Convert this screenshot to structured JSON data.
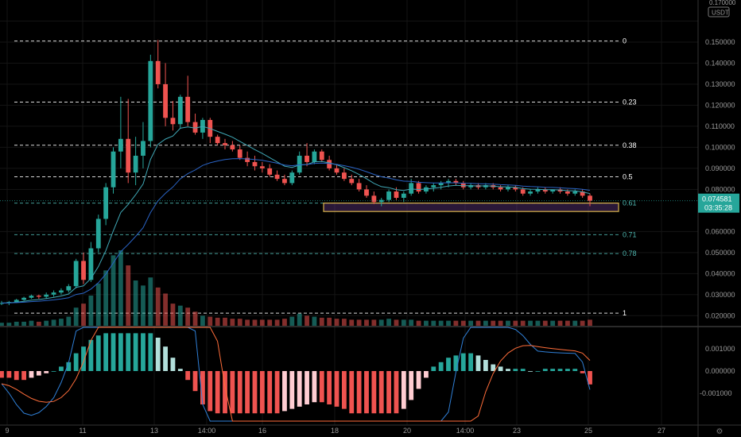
{
  "chart_data": {
    "type": "candlestick",
    "title": "",
    "currency_label": "USDT",
    "price_axis": {
      "ticks": [
        "0.150000",
        "0.140000",
        "0.130000",
        "0.120000",
        "0.110000",
        "0.100000",
        "0.090000",
        "0.080000",
        "0.060000",
        "0.050000",
        "0.040000",
        "0.030000",
        "0.020000"
      ],
      "top_partial": "0.170000",
      "range": [
        0.015,
        0.17
      ]
    },
    "time_axis": {
      "labels": [
        "9",
        "11",
        "13",
        "14:00",
        "16",
        "18",
        "20",
        "14:00",
        "23",
        "25",
        "27"
      ]
    },
    "last_price": {
      "value": "0.074581",
      "timer": "03:35:28"
    },
    "fibonacci": {
      "levels": [
        {
          "label": "0",
          "price": 0.1505,
          "color": "#ffffff"
        },
        {
          "label": "0.23",
          "price": 0.1215,
          "color": "#ffffff"
        },
        {
          "label": "0.38",
          "price": 0.101,
          "color": "#ffffff"
        },
        {
          "label": "0.5",
          "price": 0.086,
          "color": "#ffffff"
        },
        {
          "label": "0.61",
          "price": 0.0735,
          "color": "#4fb8b1"
        },
        {
          "label": "0.71",
          "price": 0.0585,
          "color": "#4fb8b1"
        },
        {
          "label": "0.78",
          "price": 0.0495,
          "color": "#4fb8b1"
        },
        {
          "label": "1",
          "price": 0.0212,
          "color": "#ffffff"
        }
      ]
    },
    "highlight_zone": {
      "from_price": 0.0695,
      "to_price": 0.0735
    },
    "candles": [
      [
        0.026,
        0.027,
        0.025,
        0.026
      ],
      [
        0.026,
        0.027,
        0.025,
        0.0265
      ],
      [
        0.0265,
        0.028,
        0.026,
        0.0275
      ],
      [
        0.0275,
        0.029,
        0.027,
        0.0285
      ],
      [
        0.0285,
        0.03,
        0.028,
        0.0295
      ],
      [
        0.0295,
        0.03,
        0.028,
        0.029
      ],
      [
        0.029,
        0.031,
        0.028,
        0.03
      ],
      [
        0.03,
        0.032,
        0.029,
        0.031
      ],
      [
        0.031,
        0.033,
        0.03,
        0.032
      ],
      [
        0.032,
        0.035,
        0.031,
        0.034
      ],
      [
        0.034,
        0.047,
        0.033,
        0.046
      ],
      [
        0.046,
        0.05,
        0.035,
        0.037
      ],
      [
        0.037,
        0.055,
        0.036,
        0.052
      ],
      [
        0.052,
        0.068,
        0.05,
        0.066
      ],
      [
        0.066,
        0.083,
        0.063,
        0.081
      ],
      [
        0.081,
        0.1,
        0.078,
        0.098
      ],
      [
        0.098,
        0.124,
        0.09,
        0.104
      ],
      [
        0.104,
        0.123,
        0.083,
        0.088
      ],
      [
        0.088,
        0.105,
        0.082,
        0.096
      ],
      [
        0.096,
        0.112,
        0.09,
        0.103
      ],
      [
        0.103,
        0.144,
        0.1,
        0.141
      ],
      [
        0.141,
        0.151,
        0.128,
        0.13
      ],
      [
        0.13,
        0.14,
        0.11,
        0.114
      ],
      [
        0.114,
        0.122,
        0.108,
        0.111
      ],
      [
        0.111,
        0.125,
        0.109,
        0.124
      ],
      [
        0.124,
        0.134,
        0.11,
        0.112
      ],
      [
        0.112,
        0.116,
        0.106,
        0.107
      ],
      [
        0.107,
        0.114,
        0.104,
        0.113
      ],
      [
        0.113,
        0.114,
        0.102,
        0.105
      ],
      [
        0.105,
        0.106,
        0.101,
        0.102
      ],
      [
        0.102,
        0.104,
        0.099,
        0.101
      ],
      [
        0.101,
        0.103,
        0.098,
        0.099
      ],
      [
        0.099,
        0.101,
        0.094,
        0.095
      ],
      [
        0.095,
        0.098,
        0.091,
        0.093
      ],
      [
        0.093,
        0.096,
        0.089,
        0.091
      ],
      [
        0.091,
        0.093,
        0.088,
        0.09
      ],
      [
        0.09,
        0.092,
        0.086,
        0.087
      ],
      [
        0.087,
        0.089,
        0.084,
        0.085
      ],
      [
        0.085,
        0.087,
        0.082,
        0.083
      ],
      [
        0.083,
        0.089,
        0.082,
        0.088
      ],
      [
        0.088,
        0.098,
        0.087,
        0.096
      ],
      [
        0.096,
        0.102,
        0.091,
        0.093
      ],
      [
        0.093,
        0.099,
        0.092,
        0.098
      ],
      [
        0.098,
        0.099,
        0.093,
        0.094
      ],
      [
        0.094,
        0.096,
        0.089,
        0.09
      ],
      [
        0.09,
        0.092,
        0.087,
        0.088
      ],
      [
        0.088,
        0.09,
        0.084,
        0.085
      ],
      [
        0.085,
        0.087,
        0.082,
        0.083
      ],
      [
        0.083,
        0.085,
        0.079,
        0.08
      ],
      [
        0.08,
        0.082,
        0.076,
        0.077
      ],
      [
        0.077,
        0.079,
        0.073,
        0.074
      ],
      [
        0.074,
        0.076,
        0.072,
        0.075
      ],
      [
        0.075,
        0.08,
        0.074,
        0.079
      ],
      [
        0.079,
        0.081,
        0.075,
        0.076
      ],
      [
        0.076,
        0.079,
        0.074,
        0.078
      ],
      [
        0.078,
        0.085,
        0.077,
        0.083
      ],
      [
        0.083,
        0.084,
        0.078,
        0.079
      ],
      [
        0.079,
        0.082,
        0.078,
        0.081
      ],
      [
        0.081,
        0.083,
        0.079,
        0.082
      ],
      [
        0.082,
        0.084,
        0.08,
        0.083
      ],
      [
        0.083,
        0.085,
        0.081,
        0.084
      ],
      [
        0.084,
        0.085,
        0.082,
        0.083
      ],
      [
        0.083,
        0.084,
        0.08,
        0.081
      ],
      [
        0.081,
        0.083,
        0.08,
        0.082
      ],
      [
        0.082,
        0.083,
        0.08,
        0.081
      ],
      [
        0.081,
        0.083,
        0.08,
        0.082
      ],
      [
        0.082,
        0.083,
        0.08,
        0.081
      ],
      [
        0.081,
        0.082,
        0.079,
        0.08
      ],
      [
        0.08,
        0.082,
        0.079,
        0.081
      ],
      [
        0.081,
        0.082,
        0.079,
        0.08
      ],
      [
        0.08,
        0.081,
        0.077,
        0.078
      ],
      [
        0.078,
        0.08,
        0.077,
        0.079
      ],
      [
        0.079,
        0.081,
        0.078,
        0.08
      ],
      [
        0.08,
        0.081,
        0.078,
        0.079
      ],
      [
        0.079,
        0.08,
        0.078,
        0.08
      ],
      [
        0.08,
        0.081,
        0.078,
        0.079
      ],
      [
        0.079,
        0.08,
        0.077,
        0.078
      ],
      [
        0.078,
        0.08,
        0.077,
        0.079
      ],
      [
        0.079,
        0.08,
        0.076,
        0.077
      ],
      [
        0.077,
        0.078,
        0.072,
        0.0746
      ]
    ],
    "volume": [
      3,
      3,
      4,
      4,
      5,
      4,
      5,
      6,
      7,
      9,
      18,
      22,
      30,
      42,
      55,
      70,
      75,
      60,
      45,
      40,
      48,
      38,
      32,
      22,
      20,
      18,
      14,
      10,
      9,
      8,
      8,
      7,
      7,
      6,
      6,
      6,
      6,
      6,
      7,
      9,
      12,
      10,
      9,
      8,
      8,
      7,
      7,
      6,
      6,
      6,
      6,
      6,
      7,
      6,
      6,
      6,
      5,
      5,
      5,
      5,
      5,
      5,
      5,
      5,
      5,
      5,
      5,
      5,
      5,
      5,
      5,
      5,
      5,
      5,
      5,
      5,
      5,
      5,
      5,
      6
    ],
    "macd": {
      "histogram": [
        -0.0003,
        -0.0003,
        -0.0004,
        -0.0004,
        -0.0003,
        -0.0002,
        -0.0001,
        0.0,
        0.0002,
        0.0004,
        0.0008,
        0.0011,
        0.0014,
        0.0016,
        0.0017,
        0.0017,
        0.0017,
        0.0017,
        0.0017,
        0.0017,
        0.0017,
        0.0015,
        0.0011,
        0.0006,
        0.0001,
        -0.0004,
        -0.0009,
        -0.0015,
        -0.0018,
        -0.0019,
        -0.0019,
        -0.0019,
        -0.0019,
        -0.0019,
        -0.0019,
        -0.0019,
        -0.0019,
        -0.0019,
        -0.0018,
        -0.0017,
        -0.0016,
        -0.0015,
        -0.0014,
        -0.0014,
        -0.0015,
        -0.0016,
        -0.0017,
        -0.0019,
        -0.0019,
        -0.0019,
        -0.0019,
        -0.0019,
        -0.0019,
        -0.0019,
        -0.0017,
        -0.0013,
        -0.0008,
        -0.0003,
        0.0002,
        0.0004,
        0.0006,
        0.0007,
        0.0008,
        0.0008,
        0.0007,
        0.0005,
        0.0003,
        0.0002,
        0.0001,
        0.0001,
        0.0001,
        0.0,
        0.0,
        0.0001,
        0.0001,
        0.0001,
        0.0001,
        0.0001,
        -0.0001,
        -0.0006
      ]
    }
  }
}
